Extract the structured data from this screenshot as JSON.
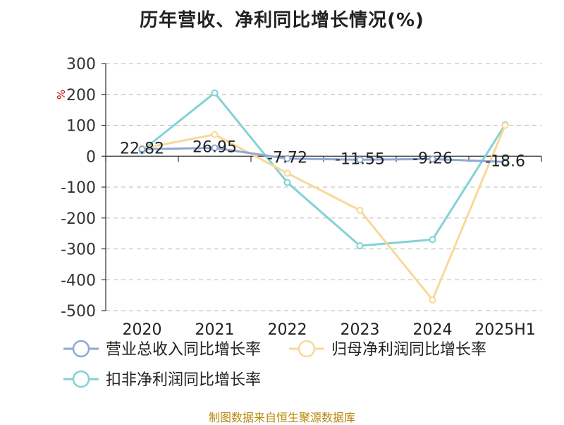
{
  "title": "历年营收、净利同比增长情况(%)",
  "footer": "制图数据来自恒生聚源数据库",
  "chart_data": {
    "type": "line",
    "title": "历年营收、净利同比增长情况(%)",
    "ylabel": "%",
    "categories": [
      "2020",
      "2021",
      "2022",
      "2023",
      "2024",
      "2025H1"
    ],
    "ylim": [
      -500,
      300
    ],
    "yticks": [
      300,
      200,
      100,
      0,
      -100,
      -200,
      -300,
      -400,
      -500
    ],
    "grid": true,
    "legend_position": "bottom",
    "series": [
      {
        "name": "营业总收入同比增长率",
        "color": "#8fa8d6",
        "values": [
          22.82,
          26.95,
          -7.72,
          -11.55,
          -9.26,
          -18.6
        ],
        "labels": [
          "22.82",
          "26.95",
          "-7.72",
          "-11.55",
          "-9.26",
          "-18.6"
        ]
      },
      {
        "name": "归母净利润同比增长率",
        "color": "#f9d898",
        "values": [
          25,
          70,
          -55,
          -175,
          -465,
          100
        ]
      },
      {
        "name": "扣非净利润同比增长率",
        "color": "#83d2d4",
        "values": [
          18,
          205,
          -85,
          -290,
          -270,
          102
        ]
      }
    ]
  }
}
